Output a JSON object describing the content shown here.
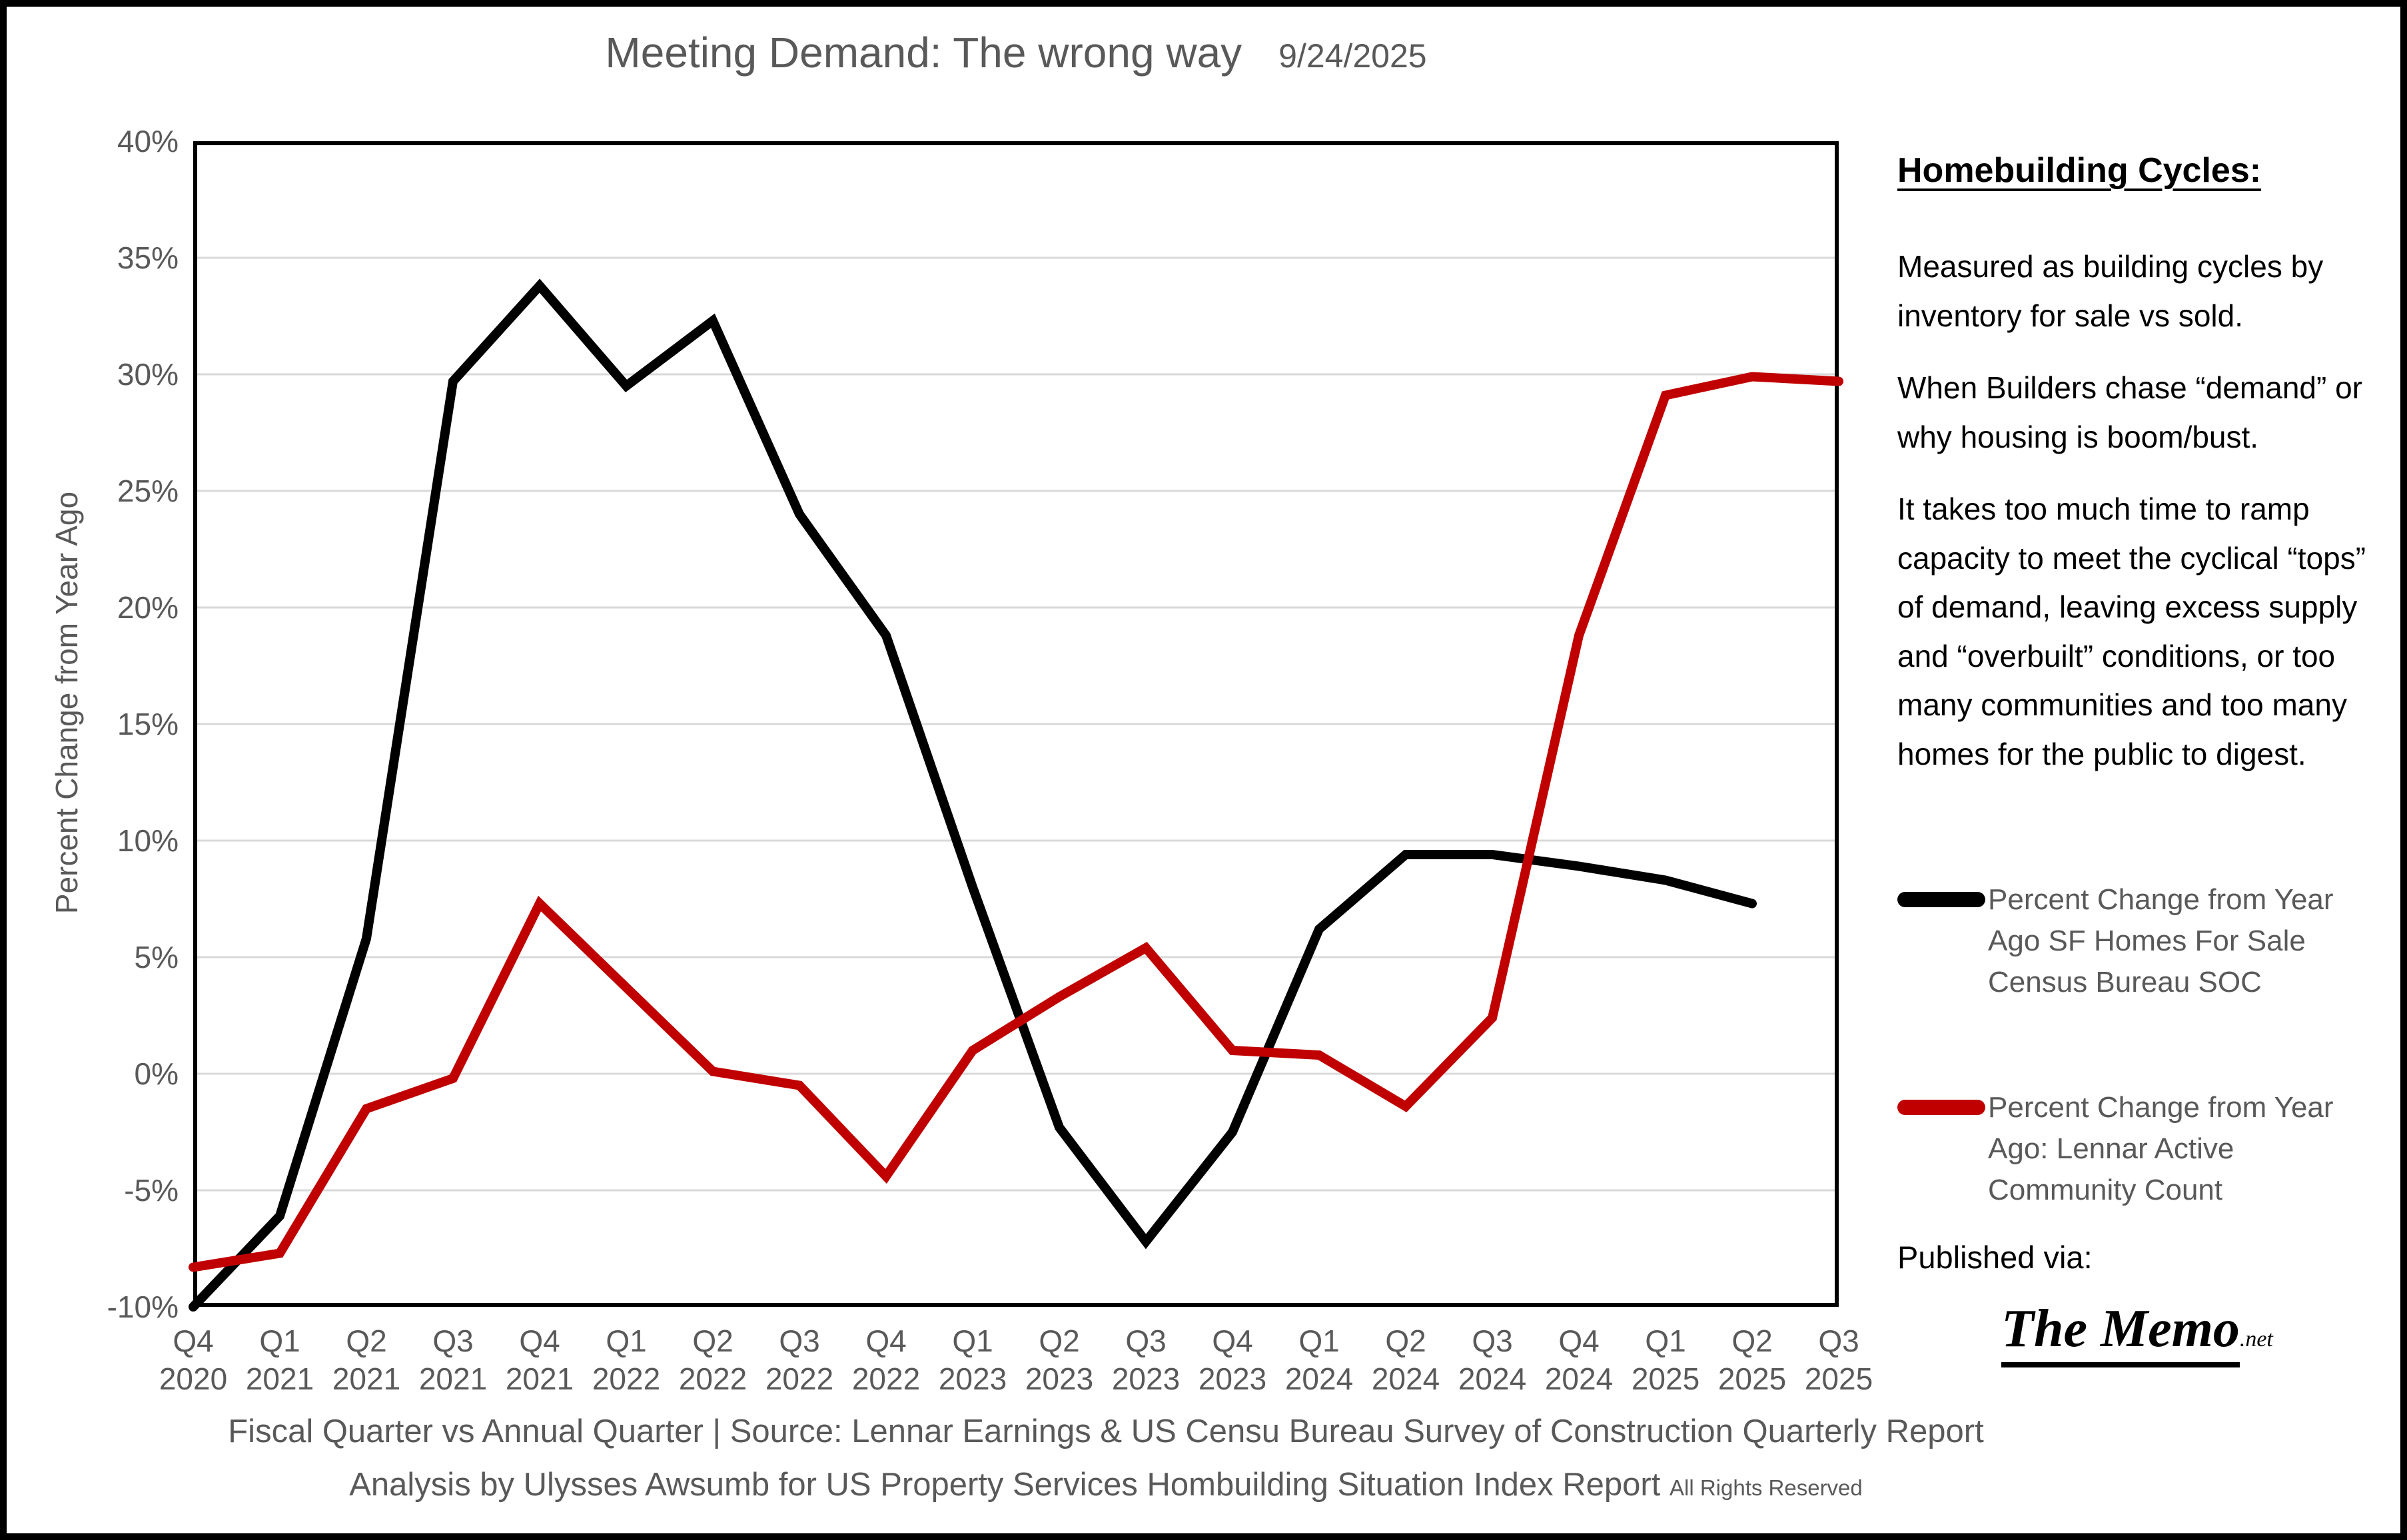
{
  "title": "Meeting Demand: The wrong way",
  "date": "9/24/2025",
  "sidebar": {
    "heading": "Homebuilding Cycles:",
    "paragraphs": [
      "Measured as building cycles by inventory for sale vs sold.",
      "When Builders chase “demand” or why housing is boom/bust.",
      "It takes too much time to ramp capacity to meet the cyclical “tops” of demand, leaving excess supply and “overbuilt” conditions, or too many communities and too many homes for the public to digest."
    ],
    "published_via": "Published via:",
    "logo_main": "The Memo",
    "logo_suffix": ".net"
  },
  "legend": [
    {
      "label": "Percent Change from Year Ago SF Homes For Sale Census Bureau SOC",
      "color": "#000000"
    },
    {
      "label": "Percent Change from Year Ago: Lennar Active Community Count",
      "color": "#C00000"
    }
  ],
  "footer": {
    "line1": "Fiscal Quarter vs Annual Quarter |  Source: Lennar Earnings & US Censu Bureau Survey of Construction Quarterly Report",
    "line2": "Analysis by Ulysses Awsumb for US Property Services Hombuilding Situation Index Report",
    "line2_small": "All Rights Reserved"
  },
  "chart_data": {
    "type": "line",
    "title": "Meeting Demand: The wrong way",
    "xlabel": "",
    "ylabel": "Percent Change from Year Ago",
    "ylim": [
      -10,
      40
    ],
    "ytick_step": 5,
    "yticks": [
      "40%",
      "35%",
      "30%",
      "25%",
      "20%",
      "15%",
      "10%",
      "5%",
      "0%",
      "-5%",
      "-10%"
    ],
    "grid": true,
    "legend_position": "right",
    "gridline_color": "#D9D9D9",
    "plot_border_color": "#000000",
    "categories": [
      {
        "quarter": "Q4",
        "year": "2020"
      },
      {
        "quarter": "Q1",
        "year": "2021"
      },
      {
        "quarter": "Q2",
        "year": "2021"
      },
      {
        "quarter": "Q3",
        "year": "2021"
      },
      {
        "quarter": "Q4",
        "year": "2021"
      },
      {
        "quarter": "Q1",
        "year": "2022"
      },
      {
        "quarter": "Q2",
        "year": "2022"
      },
      {
        "quarter": "Q3",
        "year": "2022"
      },
      {
        "quarter": "Q4",
        "year": "2022"
      },
      {
        "quarter": "Q1",
        "year": "2023"
      },
      {
        "quarter": "Q2",
        "year": "2023"
      },
      {
        "quarter": "Q3",
        "year": "2023"
      },
      {
        "quarter": "Q4",
        "year": "2023"
      },
      {
        "quarter": "Q1",
        "year": "2024"
      },
      {
        "quarter": "Q2",
        "year": "2024"
      },
      {
        "quarter": "Q3",
        "year": "2024"
      },
      {
        "quarter": "Q4",
        "year": "2024"
      },
      {
        "quarter": "Q1",
        "year": "2025"
      },
      {
        "quarter": "Q2",
        "year": "2025"
      },
      {
        "quarter": "Q3",
        "year": "2025"
      }
    ],
    "series": [
      {
        "name": "Percent Change from Year Ago SF Homes For Sale Census Bureau SOC",
        "color": "#000000",
        "values": [
          -10.0,
          -6.1,
          5.8,
          29.7,
          33.8,
          29.5,
          32.3,
          24.0,
          18.8,
          8.0,
          -2.3,
          -7.2,
          -2.5,
          6.2,
          9.4,
          9.4,
          8.9,
          8.3,
          7.3,
          null
        ]
      },
      {
        "name": "Percent Change from Year Ago: Lennar Active Community Count",
        "color": "#C00000",
        "values": [
          -8.3,
          -7.7,
          -1.5,
          -0.2,
          7.3,
          3.7,
          0.1,
          -0.5,
          -4.4,
          1.0,
          3.3,
          5.4,
          1.0,
          0.8,
          -1.4,
          2.4,
          18.8,
          29.1,
          29.9,
          29.7
        ]
      }
    ]
  }
}
